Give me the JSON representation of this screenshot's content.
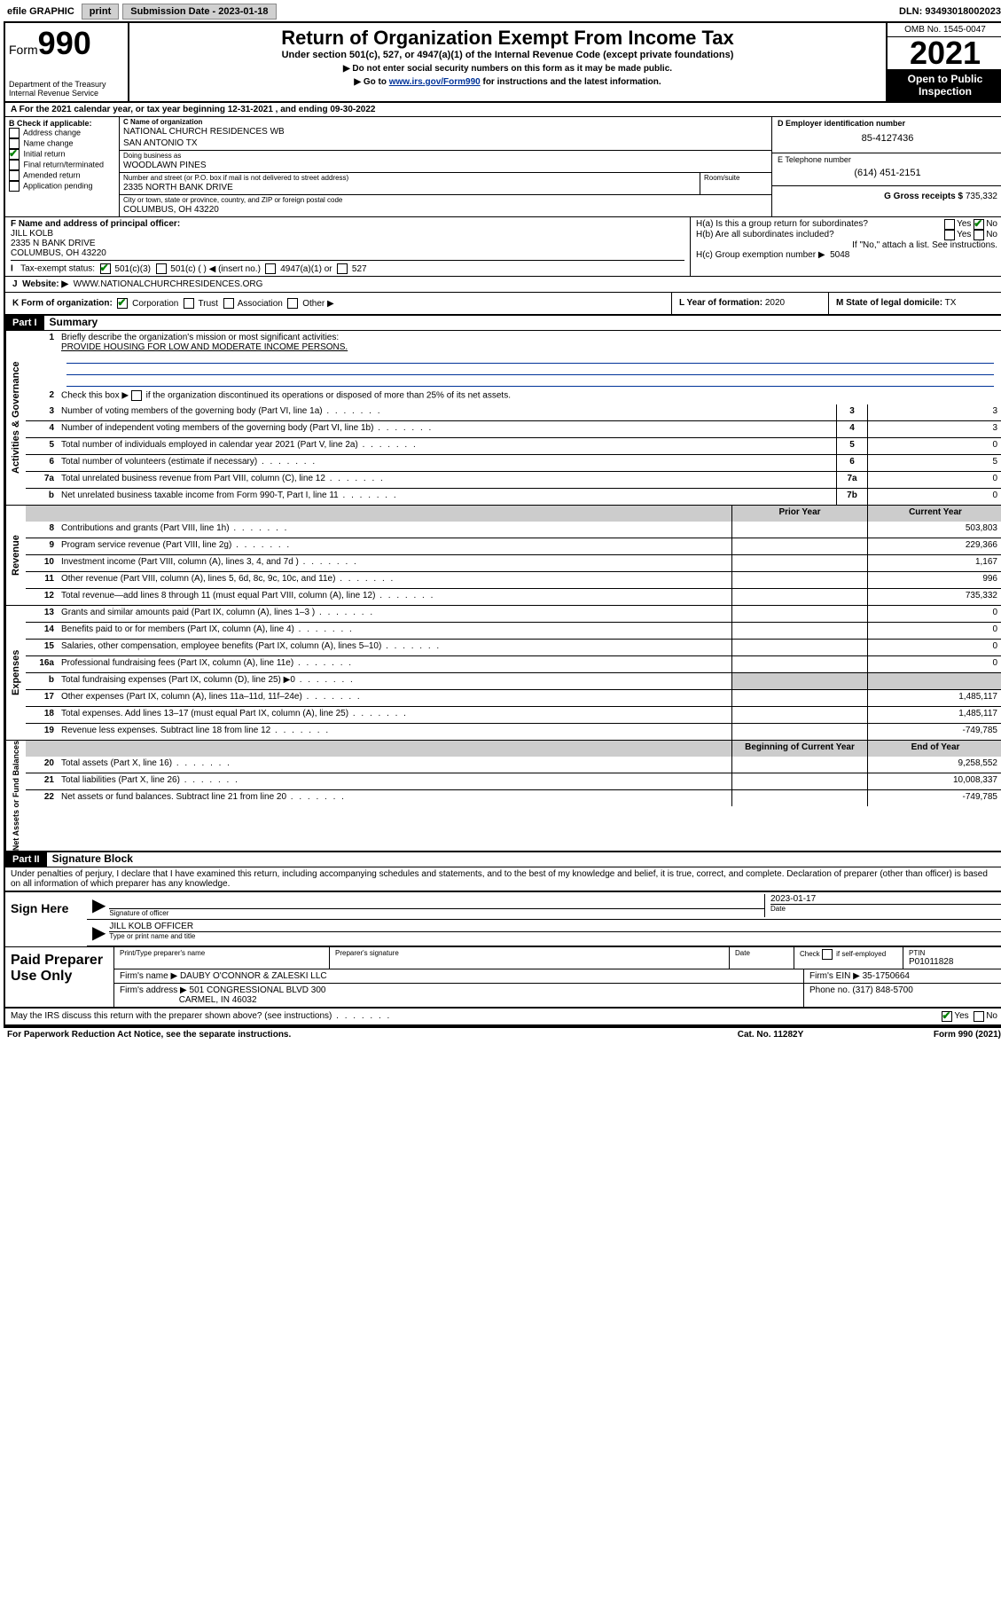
{
  "topbar": {
    "efile": "efile GRAPHIC",
    "print": "print",
    "sub_label": "Submission Date - 2023-01-18",
    "dln": "DLN: 93493018002023"
  },
  "header": {
    "form_prefix": "Form",
    "form_num": "990",
    "title": "Return of Organization Exempt From Income Tax",
    "subtitle": "Under section 501(c), 527, or 4947(a)(1) of the Internal Revenue Code (except private foundations)",
    "note1": "Do not enter social security numbers on this form as it may be made public.",
    "note2_pre": "Go to ",
    "note2_link": "www.irs.gov/Form990",
    "note2_post": " for instructions and the latest information.",
    "dept": "Department of the Treasury\nInternal Revenue Service",
    "omb": "OMB No. 1545-0047",
    "year": "2021",
    "otp": "Open to Public Inspection"
  },
  "row_a": {
    "text_pre": "A For the 2021 calendar year, or tax year beginning ",
    "begin": "12-31-2021",
    "mid": " , and ending ",
    "end": "09-30-2022"
  },
  "col_b": {
    "header": "B Check if applicable:",
    "items": [
      "Address change",
      "Name change",
      "Initial return",
      "Final return/terminated",
      "Amended return",
      "Application pending"
    ],
    "checked_idx": 2
  },
  "col_c": {
    "name_label": "C Name of organization",
    "name1": "NATIONAL CHURCH RESIDENCES WB",
    "name2": "SAN ANTONIO TX",
    "dba_label": "Doing business as",
    "dba": "WOODLAWN PINES",
    "addr_label": "Number and street (or P.O. box if mail is not delivered to street address)",
    "room_label": "Room/suite",
    "addr": "2335 NORTH BANK DRIVE",
    "city_label": "City or town, state or province, country, and ZIP or foreign postal code",
    "city": "COLUMBUS, OH  43220"
  },
  "col_de": {
    "d_label": "D Employer identification number",
    "d_val": "85-4127436",
    "e_label": "E Telephone number",
    "e_val": "(614) 451-2151",
    "g_label": "G Gross receipts $",
    "g_val": "735,332"
  },
  "row_f": {
    "f_label": "F Name and address of principal officer:",
    "f_name": "JILL KOLB",
    "f_addr1": "2335 N BANK DRIVE",
    "f_addr2": "COLUMBUS, OH  43220",
    "ha": "H(a)  Is this a group return for subordinates?",
    "ha_yes": "Yes",
    "ha_no": "No",
    "hb": "H(b)  Are all subordinates included?",
    "hb_yes": "Yes",
    "hb_no": "No",
    "hb_note": "If \"No,\" attach a list. See instructions.",
    "hc_label": "H(c)  Group exemption number ▶",
    "hc_val": "5048"
  },
  "row_i": {
    "label": "Tax-exempt status:",
    "opts": [
      "501(c)(3)",
      "501(c) (  ) ◀ (insert no.)",
      "4947(a)(1) or",
      "527"
    ],
    "checked_idx": 0
  },
  "row_j": {
    "label": "J",
    "text": "Website: ▶",
    "val": "WWW.NATIONALCHURCHRESIDENCES.ORG"
  },
  "row_k": {
    "label": "K Form of organization:",
    "opts": [
      "Corporation",
      "Trust",
      "Association",
      "Other ▶"
    ],
    "checked_idx": 0,
    "l_label": "L Year of formation:",
    "l_val": "2020",
    "m_label": "M State of legal domicile:",
    "m_val": "TX"
  },
  "part1": {
    "hdr": "Part I",
    "title": "Summary"
  },
  "gov": {
    "label": "Activities & Governance",
    "l1": "Briefly describe the organization's mission or most significant activities:",
    "l1v": "PROVIDE HOUSING FOR LOW AND MODERATE INCOME PERSONS.",
    "l2": "Check this box ▶        if the organization discontinued its operations or disposed of more than 25% of its net assets.",
    "lines": [
      {
        "n": "3",
        "t": "Number of voting members of the governing body (Part VI, line 1a)",
        "b": "3",
        "v": "3"
      },
      {
        "n": "4",
        "t": "Number of independent voting members of the governing body (Part VI, line 1b)",
        "b": "4",
        "v": "3"
      },
      {
        "n": "5",
        "t": "Total number of individuals employed in calendar year 2021 (Part V, line 2a)",
        "b": "5",
        "v": "0"
      },
      {
        "n": "6",
        "t": "Total number of volunteers (estimate if necessary)",
        "b": "6",
        "v": "5"
      },
      {
        "n": "7a",
        "t": "Total unrelated business revenue from Part VIII, column (C), line 12",
        "b": "7a",
        "v": "0"
      },
      {
        "n": "b",
        "t": "Net unrelated business taxable income from Form 990-T, Part I, line 11",
        "b": "7b",
        "v": "0"
      }
    ]
  },
  "twocol_hdr": {
    "prior": "Prior Year",
    "current": "Current Year",
    "begin": "Beginning of Current Year",
    "end": "End of Year"
  },
  "rev": {
    "label": "Revenue",
    "lines": [
      {
        "n": "8",
        "t": "Contributions and grants (Part VIII, line 1h)",
        "p": "",
        "c": "503,803"
      },
      {
        "n": "9",
        "t": "Program service revenue (Part VIII, line 2g)",
        "p": "",
        "c": "229,366"
      },
      {
        "n": "10",
        "t": "Investment income (Part VIII, column (A), lines 3, 4, and 7d )",
        "p": "",
        "c": "1,167"
      },
      {
        "n": "11",
        "t": "Other revenue (Part VIII, column (A), lines 5, 6d, 8c, 9c, 10c, and 11e)",
        "p": "",
        "c": "996"
      },
      {
        "n": "12",
        "t": "Total revenue—add lines 8 through 11 (must equal Part VIII, column (A), line 12)",
        "p": "",
        "c": "735,332"
      }
    ]
  },
  "exp": {
    "label": "Expenses",
    "lines": [
      {
        "n": "13",
        "t": "Grants and similar amounts paid (Part IX, column (A), lines 1–3 )",
        "p": "",
        "c": "0"
      },
      {
        "n": "14",
        "t": "Benefits paid to or for members (Part IX, column (A), line 4)",
        "p": "",
        "c": "0"
      },
      {
        "n": "15",
        "t": "Salaries, other compensation, employee benefits (Part IX, column (A), lines 5–10)",
        "p": "",
        "c": "0"
      },
      {
        "n": "16a",
        "t": "Professional fundraising fees (Part IX, column (A), line 11e)",
        "p": "",
        "c": "0"
      },
      {
        "n": "b",
        "t": "Total fundraising expenses (Part IX, column (D), line 25) ▶0",
        "p": "shade",
        "c": "shade"
      },
      {
        "n": "17",
        "t": "Other expenses (Part IX, column (A), lines 11a–11d, 11f–24e)",
        "p": "",
        "c": "1,485,117"
      },
      {
        "n": "18",
        "t": "Total expenses. Add lines 13–17 (must equal Part IX, column (A), line 25)",
        "p": "",
        "c": "1,485,117"
      },
      {
        "n": "19",
        "t": "Revenue less expenses. Subtract line 18 from line 12",
        "p": "",
        "c": "-749,785"
      }
    ]
  },
  "net": {
    "label": "Net Assets or Fund Balances",
    "lines": [
      {
        "n": "20",
        "t": "Total assets (Part X, line 16)",
        "p": "",
        "c": "9,258,552"
      },
      {
        "n": "21",
        "t": "Total liabilities (Part X, line 26)",
        "p": "",
        "c": "10,008,337"
      },
      {
        "n": "22",
        "t": "Net assets or fund balances. Subtract line 21 from line 20",
        "p": "",
        "c": "-749,785"
      }
    ]
  },
  "part2": {
    "hdr": "Part II",
    "title": "Signature Block"
  },
  "sig": {
    "decl": "Under penalties of perjury, I declare that I have examined this return, including accompanying schedules and statements, and to the best of my knowledge and belief, it is true, correct, and complete. Declaration of preparer (other than officer) is based on all information of which preparer has any knowledge.",
    "sign_here": "Sign Here",
    "sig_officer": "Signature of officer",
    "date_label": "Date",
    "date_val": "2023-01-17",
    "name_val": "JILL KOLB  OFFICER",
    "name_cap": "Type or print name and title"
  },
  "prep": {
    "label": "Paid Preparer Use Only",
    "h1": "Print/Type preparer's name",
    "h2": "Preparer's signature",
    "h3": "Date",
    "h4_pre": "Check",
    "h4_post": "if self-employed",
    "h5": "PTIN",
    "ptin": "P01011828",
    "firm_name_l": "Firm's name    ▶",
    "firm_name": "DAUBY O'CONNOR & ZALESKI LLC",
    "firm_ein_l": "Firm's EIN ▶",
    "firm_ein": "35-1750664",
    "firm_addr_l": "Firm's address ▶",
    "firm_addr1": "501 CONGRESSIONAL BLVD 300",
    "firm_addr2": "CARMEL, IN  46032",
    "phone_l": "Phone no.",
    "phone": "(317) 848-5700"
  },
  "may": {
    "text": "May the IRS discuss this return with the preparer shown above? (see instructions)",
    "yes": "Yes",
    "no": "No"
  },
  "footer": {
    "left": "For Paperwork Reduction Act Notice, see the separate instructions.",
    "mid": "Cat. No. 11282Y",
    "right": "Form 990 (2021)"
  }
}
